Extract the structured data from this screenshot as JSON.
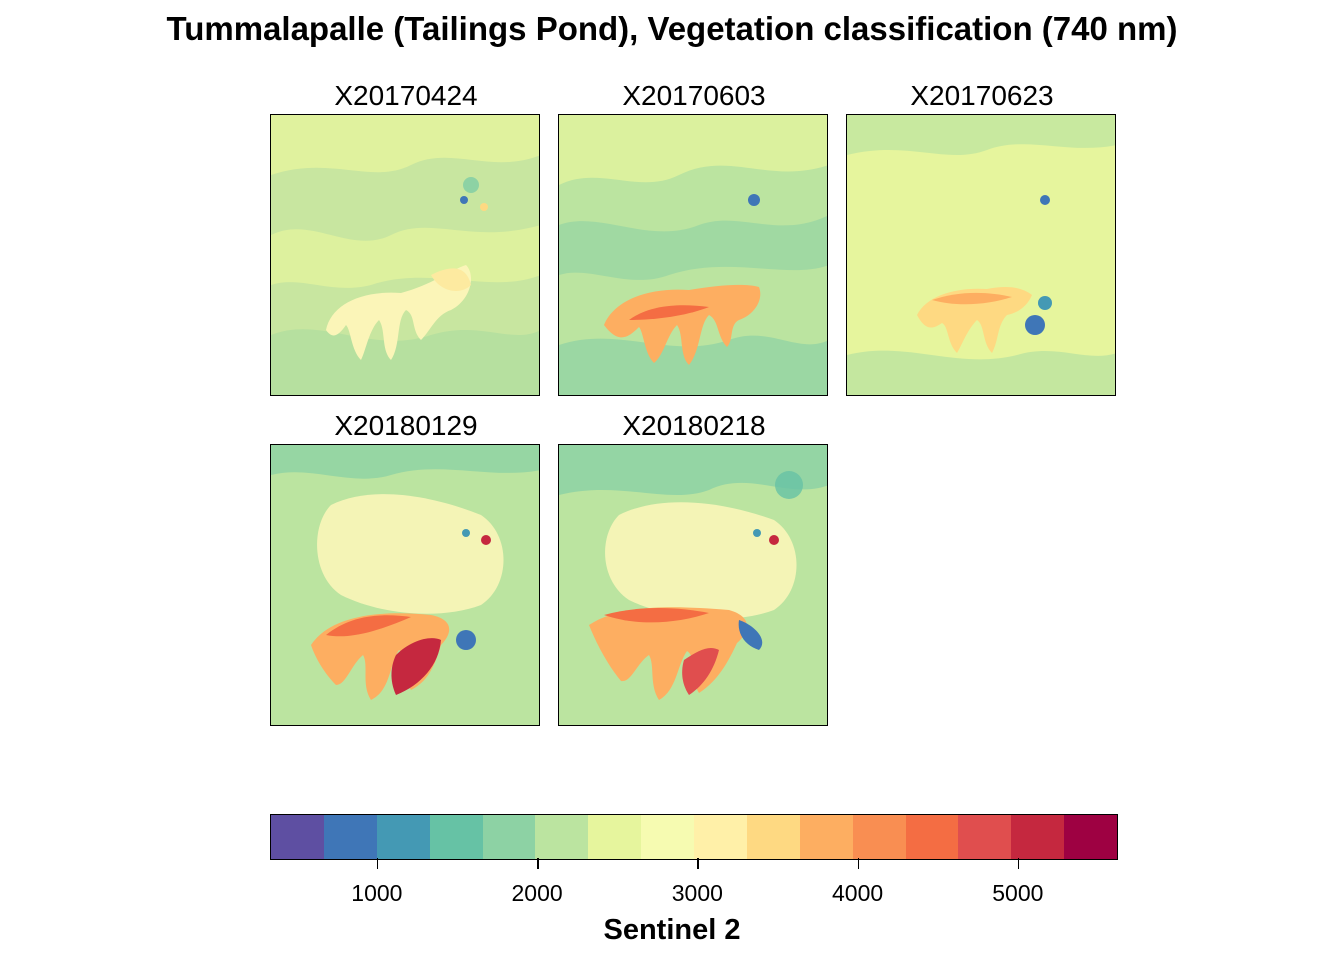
{
  "title": "Tummalapalle (Tailings Pond), Vegetation classification (740 nm)",
  "chart_data": {
    "type": "heatmap",
    "title": "Tummalapalle (Tailings Pond), Vegetation classification (740 nm)",
    "panels": [
      "X20170424",
      "X20170603",
      "X20170623",
      "X20180129",
      "X20180218"
    ],
    "colorbar": {
      "title": "Sentinel 2",
      "range": [
        333,
        5625
      ],
      "ticks": [
        1000,
        2000,
        3000,
        4000,
        5000
      ],
      "tick_labels": [
        "1000",
        "2000",
        "3000",
        "4000",
        "5000"
      ],
      "colors": [
        "#5e4fa2",
        "#3f76b7",
        "#4499b4",
        "#66c2a5",
        "#8dd2a4",
        "#bbe4a0",
        "#e6f59d",
        "#f6fbb1",
        "#fff0a8",
        "#fed982",
        "#fdae61",
        "#f98e52",
        "#f46d43",
        "#e04e4e",
        "#c5283f",
        "#9e0142"
      ]
    },
    "approx_values": {
      "background": 2300,
      "tailings_pond_2017_04": 3300,
      "tailings_pond_2017_06": 4000,
      "tailings_pond_2018": 5200,
      "water_patch": 900
    }
  }
}
